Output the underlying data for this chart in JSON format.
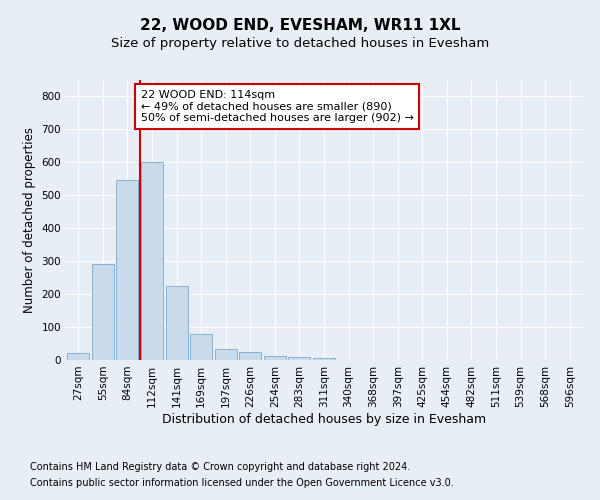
{
  "title": "22, WOOD END, EVESHAM, WR11 1XL",
  "subtitle": "Size of property relative to detached houses in Evesham",
  "xlabel": "Distribution of detached houses by size in Evesham",
  "ylabel": "Number of detached properties",
  "footer_line1": "Contains HM Land Registry data © Crown copyright and database right 2024.",
  "footer_line2": "Contains public sector information licensed under the Open Government Licence v3.0.",
  "categories": [
    "27sqm",
    "55sqm",
    "84sqm",
    "112sqm",
    "141sqm",
    "169sqm",
    "197sqm",
    "226sqm",
    "254sqm",
    "283sqm",
    "311sqm",
    "340sqm",
    "368sqm",
    "397sqm",
    "425sqm",
    "454sqm",
    "482sqm",
    "511sqm",
    "539sqm",
    "568sqm",
    "596sqm"
  ],
  "bar_values": [
    22,
    290,
    545,
    600,
    225,
    80,
    33,
    23,
    12,
    8,
    5,
    0,
    0,
    0,
    0,
    0,
    0,
    0,
    0,
    0,
    0
  ],
  "bar_color": "#c9daea",
  "bar_edge_color": "#7aaaca",
  "red_line_index": 3,
  "red_line_color": "#cc0000",
  "annotation_text": "22 WOOD END: 114sqm\n← 49% of detached houses are smaller (890)\n50% of semi-detached houses are larger (902) →",
  "annotation_box_color": "white",
  "annotation_box_edge": "#cc0000",
  "ylim": [
    0,
    850
  ],
  "yticks": [
    0,
    100,
    200,
    300,
    400,
    500,
    600,
    700,
    800
  ],
  "background_color": "#e8eef5",
  "plot_background": "#e8eef5",
  "grid_color": "white",
  "title_fontsize": 11,
  "subtitle_fontsize": 9.5,
  "ylabel_fontsize": 8.5,
  "xlabel_fontsize": 9,
  "tick_fontsize": 7.5,
  "annotation_fontsize": 8,
  "footer_fontsize": 7
}
